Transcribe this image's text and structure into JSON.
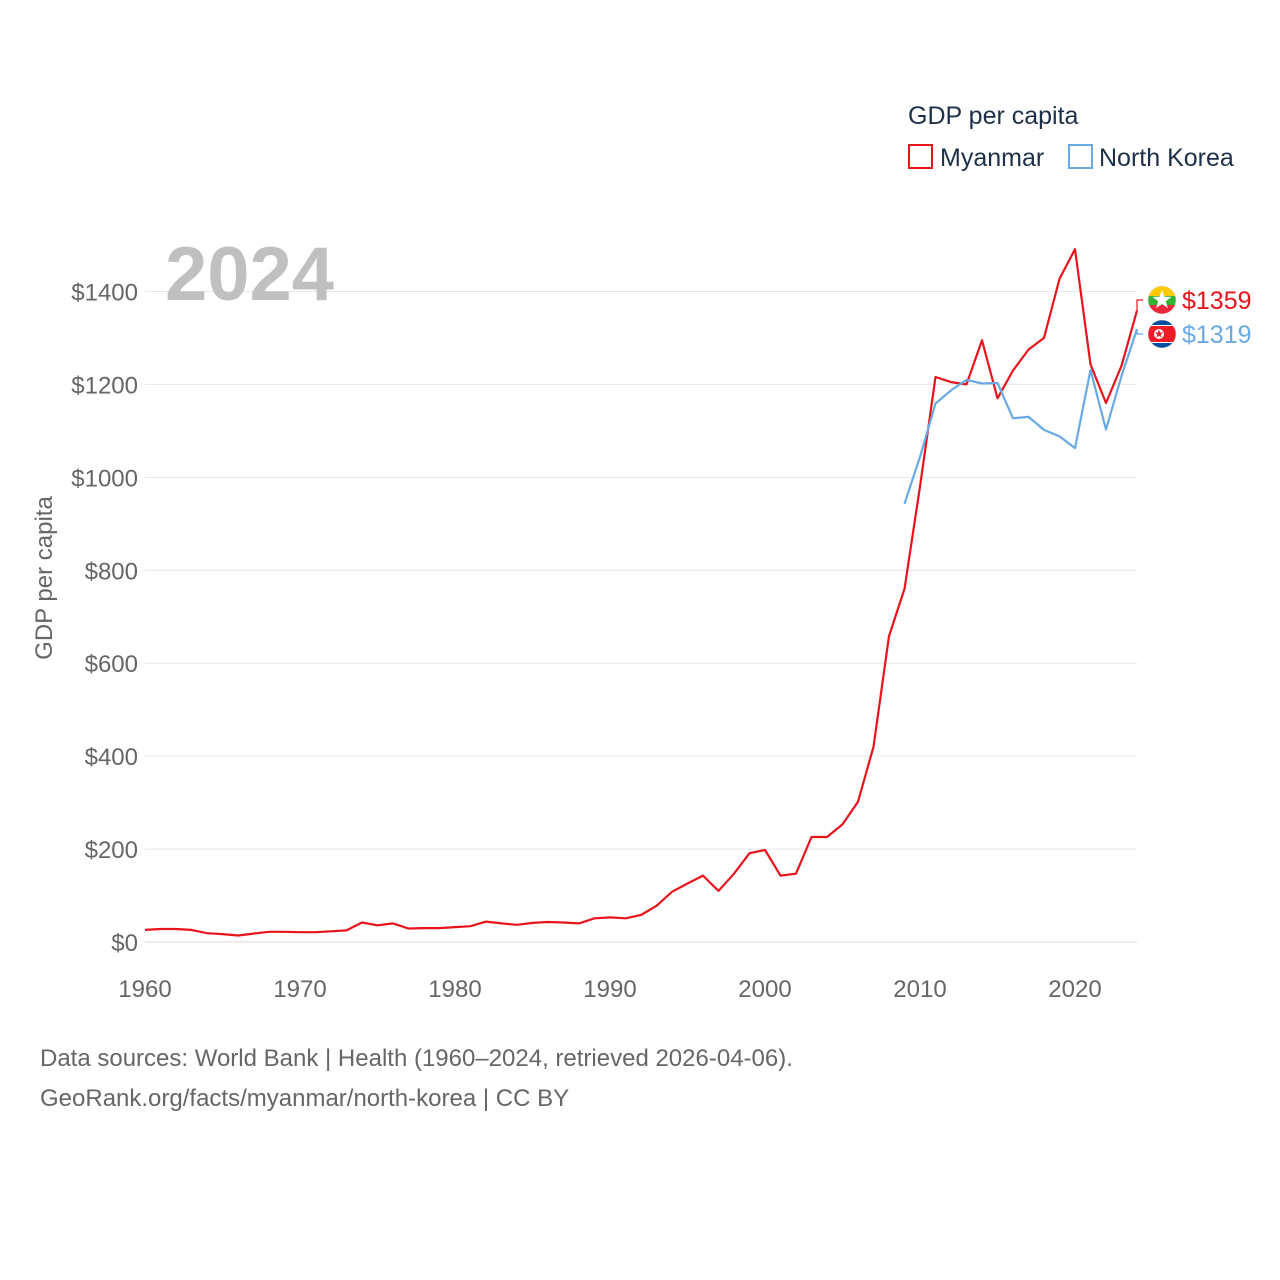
{
  "chart_data": {
    "type": "line",
    "title": "",
    "big_year_label": "2024",
    "ylabel": "GDP per capita",
    "xlabel": "",
    "ylim": [
      0,
      1500
    ],
    "xlim": [
      1960,
      2024
    ],
    "yticks": [
      0,
      200,
      400,
      600,
      800,
      1000,
      1200,
      1400
    ],
    "ytick_labels": [
      "$0",
      "$200",
      "$400",
      "$600",
      "$800",
      "$1000",
      "$1200",
      "$1400"
    ],
    "xticks": [
      1960,
      1970,
      1980,
      1990,
      2000,
      2010,
      2020
    ],
    "xtick_labels": [
      "1960",
      "1970",
      "1980",
      "1990",
      "2000",
      "2010",
      "2020"
    ],
    "grid": true,
    "legend": {
      "title": "GDP per capita",
      "placement": "top-right",
      "entries": [
        "Myanmar",
        "North Korea"
      ]
    },
    "series": [
      {
        "name": "Myanmar",
        "color": "#e8141c",
        "end_label": "$1359",
        "flag": "myanmar-flag",
        "x": [
          1960,
          1961,
          1962,
          1963,
          1964,
          1965,
          1966,
          1967,
          1968,
          1969,
          1970,
          1971,
          1972,
          1973,
          1974,
          1975,
          1976,
          1977,
          1978,
          1979,
          1980,
          1981,
          1982,
          1983,
          1984,
          1985,
          1986,
          1987,
          1988,
          1989,
          1990,
          1991,
          1992,
          1993,
          1994,
          1995,
          1996,
          1997,
          1998,
          1999,
          2000,
          2001,
          2002,
          2003,
          2004,
          2005,
          2006,
          2007,
          2008,
          2009,
          2010,
          2011,
          2012,
          2013,
          2014,
          2015,
          2016,
          2017,
          2018,
          2019,
          2020,
          2021,
          2022,
          2023,
          2024
        ],
        "values": [
          26,
          28,
          28,
          26,
          19,
          17,
          14,
          18,
          22,
          22,
          21,
          21,
          23,
          25,
          42,
          36,
          40,
          29,
          30,
          30,
          32,
          34,
          44,
          40,
          37,
          41,
          43,
          42,
          40,
          51,
          53,
          51,
          58,
          78,
          108,
          126,
          143,
          110,
          147,
          191,
          198,
          143,
          147,
          226,
          226,
          253,
          302,
          420,
          658,
          760,
          980,
          1216,
          1205,
          1200,
          1295,
          1170,
          1230,
          1275,
          1300,
          1427,
          1491,
          1243,
          1160,
          1240,
          1359
        ]
      },
      {
        "name": "North Korea",
        "color": "#6aaae4",
        "end_label": "$1319",
        "flag": "north-korea-flag",
        "x": [
          2009,
          2010,
          2011,
          2012,
          2013,
          2014,
          2015,
          2016,
          2017,
          2018,
          2019,
          2020,
          2021,
          2022,
          2023,
          2024
        ],
        "values": [
          943,
          1044,
          1159,
          1187,
          1210,
          1202,
          1203,
          1127,
          1130,
          1102,
          1088,
          1063,
          1231,
          1103,
          1218,
          1319
        ]
      }
    ]
  },
  "footer": {
    "source_line": "Data sources: World Bank | Health (1960–2024, retrieved 2026-04-06).",
    "credit_line": "GeoRank.org/facts/myanmar/north-korea | CC BY"
  }
}
